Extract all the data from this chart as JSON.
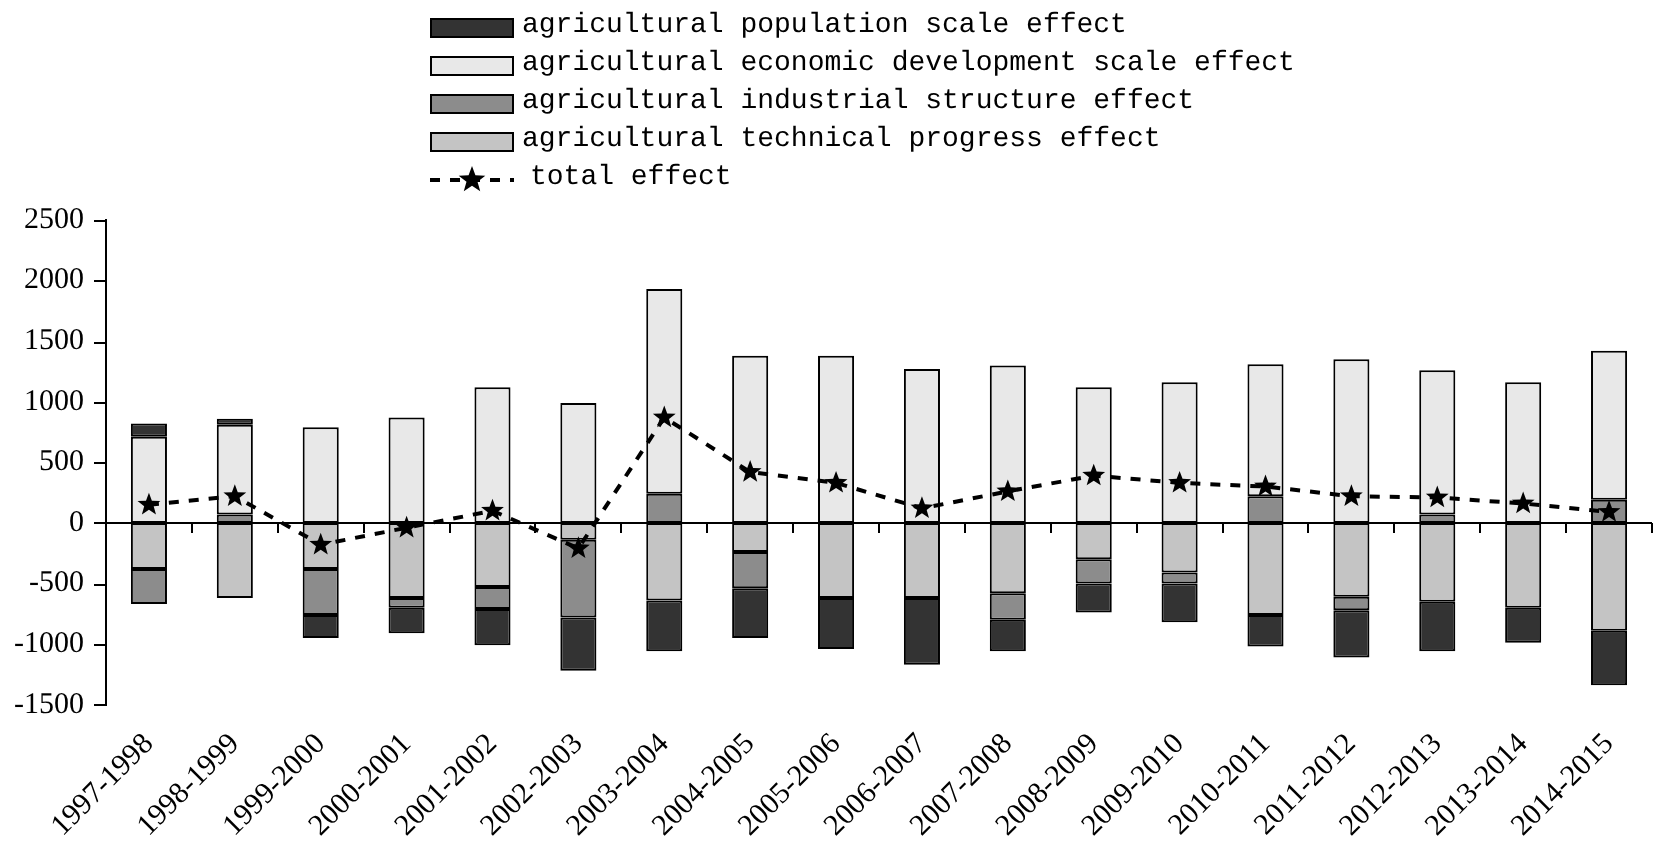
{
  "chart_data": {
    "type": "bar",
    "stacked": true,
    "categories": [
      "1997-1998",
      "1998-1999",
      "1999-2000",
      "2000-2001",
      "2001-2002",
      "2002-2003",
      "2003-2004",
      "2004-2005",
      "2005-2006",
      "2006-2007",
      "2007-2008",
      "2008-2009",
      "2009-2010",
      "2010-2011",
      "2011-2012",
      "2012-2013",
      "2013-2014",
      "2014-2015"
    ],
    "series": [
      {
        "name": "agricultural technical progress effect",
        "color": "#c4c4c4",
        "values": [
          -380,
          -620,
          -380,
          -620,
          -530,
          -140,
          -640,
          -240,
          -620,
          -620,
          -580,
          -300,
          -410,
          -760,
          -610,
          -650,
          -700,
          -890
        ]
      },
      {
        "name": "agricultural industrial structure effect",
        "color": "#8c8c8c",
        "values": [
          -290,
          70,
          -380,
          -80,
          -180,
          -640,
          240,
          -300,
          null,
          null,
          -220,
          -200,
          -90,
          220,
          -110,
          70,
          null,
          190
        ]
      },
      {
        "name": "agricultural economic development scale effect",
        "color": "#e8e8e8",
        "values": [
          710,
          740,
          790,
          870,
          1120,
          990,
          1690,
          1380,
          1380,
          1270,
          1300,
          1120,
          1160,
          1090,
          1350,
          1190,
          1160,
          1230
        ]
      },
      {
        "name": "agricultural population scale effect",
        "color": "#333333",
        "values": [
          110,
          50,
          -190,
          -210,
          -300,
          -440,
          -420,
          -410,
          -420,
          -550,
          -260,
          -240,
          -320,
          -260,
          -390,
          -410,
          -290,
          -450
        ]
      },
      {
        "name": "total effect",
        "type": "line",
        "color": "#000000",
        "marker": "star",
        "line_style": "dashed",
        "values": [
          150,
          220,
          -180,
          -40,
          100,
          -210,
          870,
          420,
          330,
          120,
          260,
          390,
          330,
          300,
          220,
          210,
          160,
          90
        ]
      }
    ],
    "ylim": [
      -1500,
      2500
    ],
    "yticks": [
      -1500,
      -1000,
      -500,
      0,
      500,
      1000,
      1500,
      2000,
      2500
    ],
    "grid": false,
    "legend": "top",
    "ref_lines": [
      {
        "axis": "y",
        "value": 0,
        "color": "#000000",
        "line_style": "solid"
      }
    ]
  }
}
